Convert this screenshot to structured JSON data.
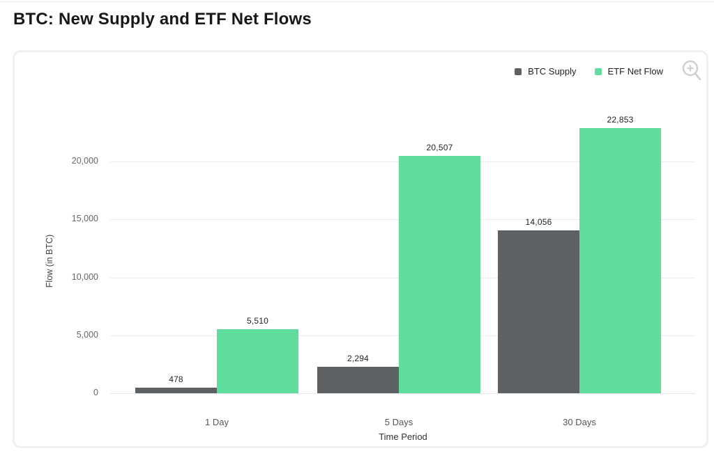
{
  "page": {
    "title": "BTC: New Supply and ETF Net Flows"
  },
  "legend": {
    "items": [
      {
        "label": "BTC Supply",
        "color": "#5e6163"
      },
      {
        "label": "ETF Net Flow",
        "color": "#5fdd9c"
      }
    ]
  },
  "icons": {
    "zoom_icon_color": "#cfcfcf"
  },
  "chart_data": {
    "type": "bar",
    "title": "BTC: New Supply and ETF Net Flows",
    "categories": [
      "1 Day",
      "5 Days",
      "30 Days"
    ],
    "series": [
      {
        "name": "BTC Supply",
        "color": "#5e6163",
        "values": [
          478,
          2294,
          14056
        ]
      },
      {
        "name": "ETF Net Flow",
        "color": "#5fdd9c",
        "values": [
          5510,
          20507,
          22853
        ]
      }
    ],
    "value_labels": [
      [
        "478",
        "2,294",
        "14,056"
      ],
      [
        "5,510",
        "20,507",
        "22,853"
      ]
    ],
    "xlabel": "Time Period",
    "ylabel": "Flow (in BTC)",
    "ylim": [
      0,
      25000
    ],
    "yticks": [
      0,
      5000,
      10000,
      15000,
      20000
    ],
    "ytick_labels": [
      "0",
      "5,000",
      "10,000",
      "15,000",
      "20,000"
    ],
    "grid": true,
    "legend_position": "top-right"
  }
}
